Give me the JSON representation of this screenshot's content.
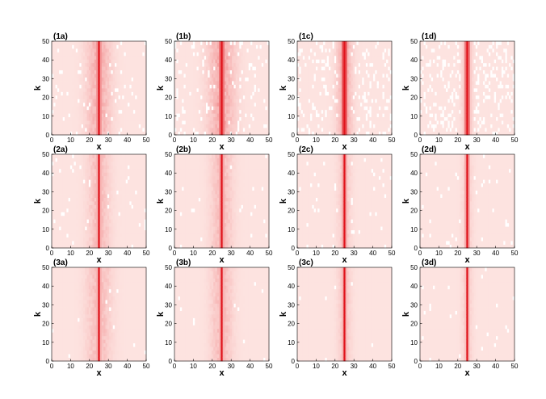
{
  "chart_data": {
    "type": "heatmap",
    "layout": {
      "rows": 3,
      "cols": 4
    },
    "xlabel": "x",
    "ylabel": "k",
    "xlim": [
      0,
      50
    ],
    "ylim": [
      0,
      50
    ],
    "xticks": [
      "0",
      "10",
      "20",
      "30",
      "40",
      "50"
    ],
    "yticks": [
      "0",
      "10",
      "20",
      "30",
      "40",
      "50"
    ],
    "colors": {
      "background": "#fde3e0",
      "peak": "#e0141c",
      "mid": "#f5a6a6",
      "light": "#ffffff"
    },
    "panels": [
      {
        "label": "(1a)",
        "center_x": 25,
        "core_width": 0.9,
        "halo_width": 4.5,
        "halo_strength": 0.45,
        "light_patches": 0.2
      },
      {
        "label": "(1b)",
        "center_x": 25,
        "core_width": 1.1,
        "halo_width": 5.0,
        "halo_strength": 0.5,
        "light_patches": 0.4
      },
      {
        "label": "(1c)",
        "center_x": 25,
        "core_width": 1.3,
        "halo_width": 3.0,
        "halo_strength": 0.45,
        "light_patches": 0.7
      },
      {
        "label": "(1d)",
        "center_x": 25,
        "core_width": 1.1,
        "halo_width": 2.0,
        "halo_strength": 0.3,
        "light_patches": 0.9
      },
      {
        "label": "(2a)",
        "center_x": 25,
        "core_width": 0.7,
        "halo_width": 4.0,
        "halo_strength": 0.35,
        "light_patches": 0.1
      },
      {
        "label": "(2b)",
        "center_x": 25,
        "core_width": 0.8,
        "halo_width": 4.0,
        "halo_strength": 0.35,
        "light_patches": 0.1
      },
      {
        "label": "(2c)",
        "center_x": 25,
        "core_width": 0.8,
        "halo_width": 2.5,
        "halo_strength": 0.25,
        "light_patches": 0.1
      },
      {
        "label": "(2d)",
        "center_x": 25,
        "core_width": 0.8,
        "halo_width": 2.0,
        "halo_strength": 0.2,
        "light_patches": 0.1
      },
      {
        "label": "(3a)",
        "center_x": 25,
        "core_width": 0.7,
        "halo_width": 4.5,
        "halo_strength": 0.35,
        "light_patches": 0.05
      },
      {
        "label": "(3b)",
        "center_x": 25,
        "core_width": 0.7,
        "halo_width": 4.0,
        "halo_strength": 0.35,
        "light_patches": 0.05
      },
      {
        "label": "(3c)",
        "center_x": 25,
        "core_width": 0.7,
        "halo_width": 2.5,
        "halo_strength": 0.25,
        "light_patches": 0.05
      },
      {
        "label": "(3d)",
        "center_x": 25,
        "core_width": 0.6,
        "halo_width": 2.0,
        "halo_strength": 0.2,
        "light_patches": 0.05
      }
    ]
  }
}
